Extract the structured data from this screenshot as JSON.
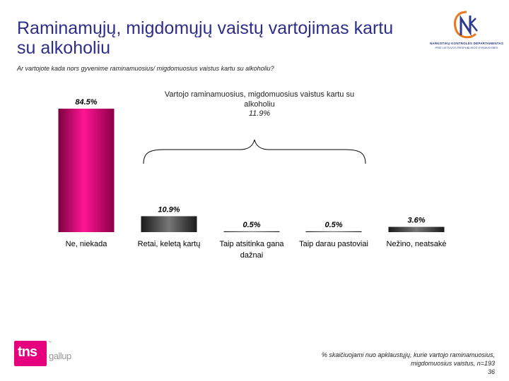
{
  "title": "Raminamųjų, migdomųjų vaistų vartojimas kartu su alkoholiu",
  "question": "Ar vartojote kada nors gyvenime raminamuosius/ migdomuosius vaistus kartu su alkoholiu?",
  "annotation": {
    "text": "Vartojo raminamuosius, migdomuosius vaistus kartu su alkoholiu",
    "value": "11.9%"
  },
  "logo": {
    "icon": "nkd-logo-icon",
    "line1": "NARKOTIKŲ KONTROLĖS DEPARTAMENTAS",
    "line2": "PRIE LIETUVOS RESPUBLIKOS VYRIAUSYBĖS"
  },
  "brand": {
    "tns": "tns",
    "gallup": "gallup",
    "color": "#e6007e"
  },
  "footnote": "% skaičiuojami nuo apklaustųjų, kurie vartojo raminamuosius, migdomuosius vaistus, n=193",
  "page_number": "36",
  "chart_data": {
    "type": "bar",
    "categories": [
      [
        "Ne, niekada"
      ],
      [
        "Retai, keletą kartų"
      ],
      [
        "Taip atsitinka gana",
        "dažnai"
      ],
      [
        "Taip darau pastoviai"
      ],
      [
        "Nežino, neatsakė"
      ]
    ],
    "values": [
      84.5,
      10.9,
      0.5,
      0.5,
      3.6
    ],
    "labels": [
      "84.5%",
      "10.9%",
      "0.5%",
      "0.5%",
      "3.6%"
    ],
    "unit": "%",
    "ylim": [
      0,
      100
    ],
    "grid": false,
    "colors": [
      "#e0007a",
      "#3a3a3a",
      "#3a3a3a",
      "#3a3a3a",
      "#3a3a3a"
    ]
  }
}
